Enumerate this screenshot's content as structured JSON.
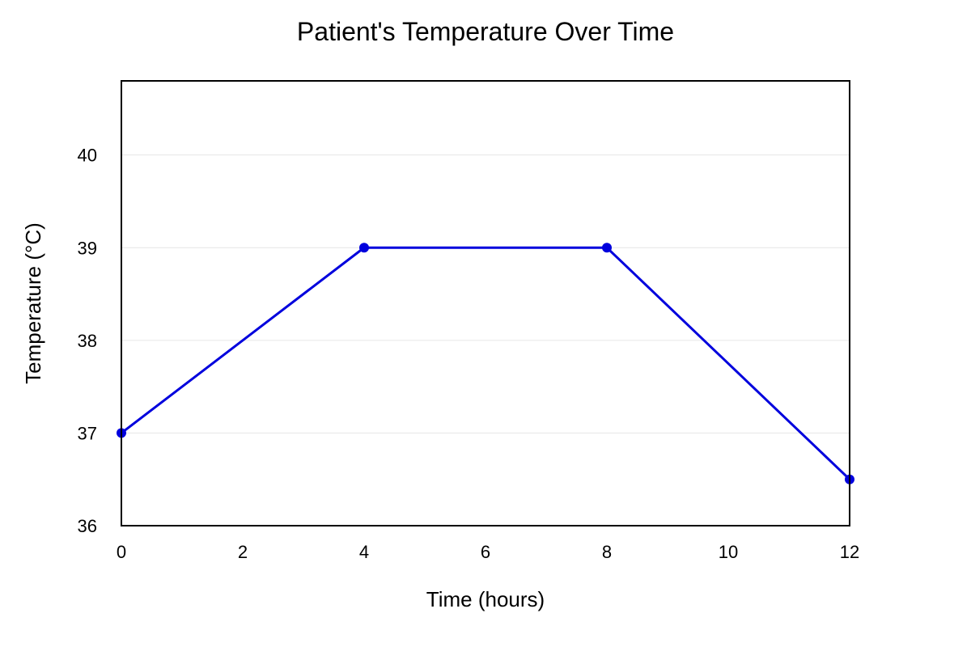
{
  "chart_data": {
    "type": "line",
    "title": "Patient's Temperature Over Time",
    "xlabel": "Time (hours)",
    "ylabel": "Temperature (°C)",
    "x": [
      0,
      4,
      8,
      12
    ],
    "series": [
      {
        "values": [
          37,
          39,
          39,
          36.5
        ],
        "color": "#0000dd"
      }
    ],
    "xlim": [
      0,
      12
    ],
    "ylim": [
      36,
      40.8
    ],
    "xticks": [
      0,
      2,
      4,
      6,
      8,
      10,
      12
    ],
    "yticks": [
      36,
      37,
      38,
      39,
      40
    ],
    "grid": "horizontal",
    "legend": "none"
  }
}
